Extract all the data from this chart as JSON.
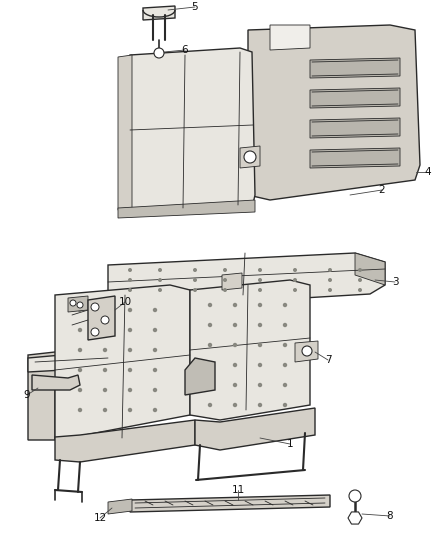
{
  "bg_color": "#ffffff",
  "line_color": "#2a2a2a",
  "fill_light": "#e8e6e0",
  "fill_mid": "#d4d0c8",
  "fill_dark": "#c0bdb5",
  "label_color": "#111111",
  "fig_width": 4.38,
  "fig_height": 5.33,
  "dpi": 100,
  "label_fs": 7.5
}
